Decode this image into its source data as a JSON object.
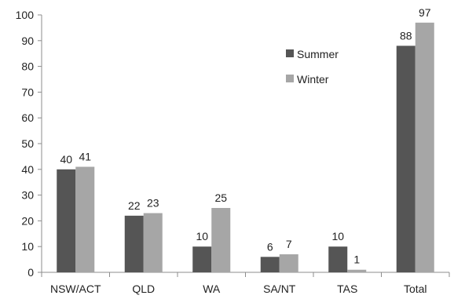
{
  "chart_data": {
    "type": "bar",
    "categories": [
      "NSW/ACT",
      "QLD",
      "WA",
      "SA/NT",
      "TAS",
      "Total"
    ],
    "series": [
      {
        "name": "Summer",
        "values": [
          40,
          22,
          10,
          6,
          10,
          88
        ]
      },
      {
        "name": "Winter",
        "values": [
          41,
          23,
          25,
          7,
          1,
          97
        ]
      }
    ],
    "ylim": [
      0,
      100
    ],
    "yticks": [
      0,
      10,
      20,
      30,
      40,
      50,
      60,
      70,
      80,
      90,
      100
    ],
    "grid": false,
    "legend_position": "top-right (inside plot)",
    "colors": {
      "Summer": "#555555",
      "Winter": "#a6a6a6",
      "axis": "#8c8c8c"
    }
  }
}
